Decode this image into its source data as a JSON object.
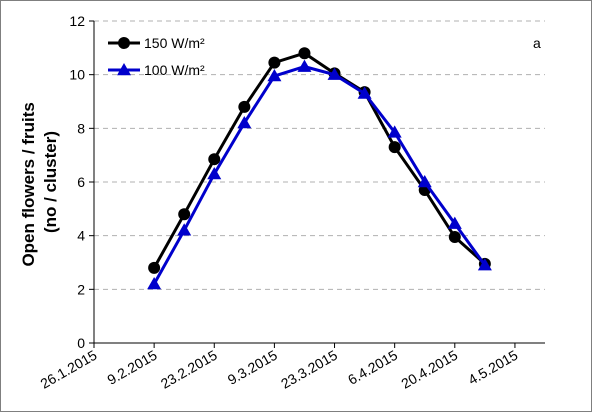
{
  "chart_data": {
    "type": "line",
    "panel_label": "a",
    "ylabel_line1": "Open flowers / fruits",
    "ylabel_line2": "(no / cluster)",
    "xlabel": "",
    "ylim": [
      0,
      12
    ],
    "y_ticks": [
      0,
      2,
      4,
      6,
      8,
      10,
      12
    ],
    "x_ticks": [
      "26.1.2015",
      "9.2.2015",
      "23.2.2015",
      "9.3.2015",
      "23.3.2015",
      "6.4.2015",
      "20.4.2015",
      "4.5.2015"
    ],
    "x_tick_days": [
      0,
      14,
      28,
      42,
      56,
      70,
      84,
      98
    ],
    "grid": "horizontal dashed",
    "legend_position": "top-left",
    "series": [
      {
        "name": "150 W/m²",
        "color": "#000000",
        "marker": "circle",
        "x": [
          "9.2.2015",
          "16.2.2015",
          "23.2.2015",
          "2.3.2015",
          "9.3.2015",
          "16.3.2015",
          "23.3.2015",
          "30.3.2015",
          "6.4.2015",
          "13.4.2015",
          "20.4.2015",
          "27.4.2015"
        ],
        "x_days": [
          14,
          21,
          28,
          35,
          42,
          49,
          56,
          63,
          70,
          77,
          84,
          91
        ],
        "values": [
          2.8,
          4.8,
          6.85,
          8.8,
          10.45,
          10.8,
          10.05,
          9.35,
          7.3,
          5.7,
          3.95,
          2.95
        ]
      },
      {
        "name": "100 W/m²",
        "color": "#0000cc",
        "marker": "triangle",
        "x": [
          "9.2.2015",
          "16.2.2015",
          "23.2.2015",
          "2.3.2015",
          "9.3.2015",
          "16.3.2015",
          "23.3.2015",
          "30.3.2015",
          "6.4.2015",
          "13.4.2015",
          "20.4.2015",
          "27.4.2015"
        ],
        "x_days": [
          14,
          21,
          28,
          35,
          42,
          49,
          56,
          63,
          70,
          77,
          84,
          91
        ],
        "values": [
          2.2,
          4.2,
          6.3,
          8.2,
          9.95,
          10.3,
          10.0,
          9.3,
          7.85,
          6.0,
          4.45,
          2.9
        ]
      }
    ]
  }
}
